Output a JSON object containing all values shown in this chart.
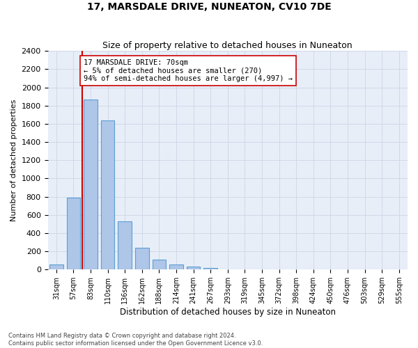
{
  "title": "17, MARSDALE DRIVE, NUNEATON, CV10 7DE",
  "subtitle": "Size of property relative to detached houses in Nuneaton",
  "xlabel": "Distribution of detached houses by size in Nuneaton",
  "ylabel": "Number of detached properties",
  "categories": [
    "31sqm",
    "57sqm",
    "83sqm",
    "110sqm",
    "136sqm",
    "162sqm",
    "188sqm",
    "214sqm",
    "241sqm",
    "267sqm",
    "293sqm",
    "319sqm",
    "345sqm",
    "372sqm",
    "398sqm",
    "424sqm",
    "450sqm",
    "476sqm",
    "503sqm",
    "529sqm",
    "555sqm"
  ],
  "values": [
    55,
    790,
    1870,
    1640,
    530,
    240,
    110,
    57,
    35,
    20,
    0,
    0,
    0,
    0,
    0,
    0,
    0,
    0,
    0,
    0,
    0
  ],
  "bar_color": "#aec6e8",
  "bar_edge_color": "#5a9fd4",
  "vline_x": 1.5,
  "vline_color": "#cc0000",
  "annotation_text": "17 MARSDALE DRIVE: 70sqm\n← 5% of detached houses are smaller (270)\n94% of semi-detached houses are larger (4,997) →",
  "annotation_box_color": "#ffffff",
  "annotation_box_edgecolor": "#cc0000",
  "ylim": [
    0,
    2400
  ],
  "yticks": [
    0,
    200,
    400,
    600,
    800,
    1000,
    1200,
    1400,
    1600,
    1800,
    2000,
    2200,
    2400
  ],
  "grid_color": "#d0d8e8",
  "bg_color": "#e8eef8",
  "footer_line1": "Contains HM Land Registry data © Crown copyright and database right 2024.",
  "footer_line2": "Contains public sector information licensed under the Open Government Licence v3.0."
}
